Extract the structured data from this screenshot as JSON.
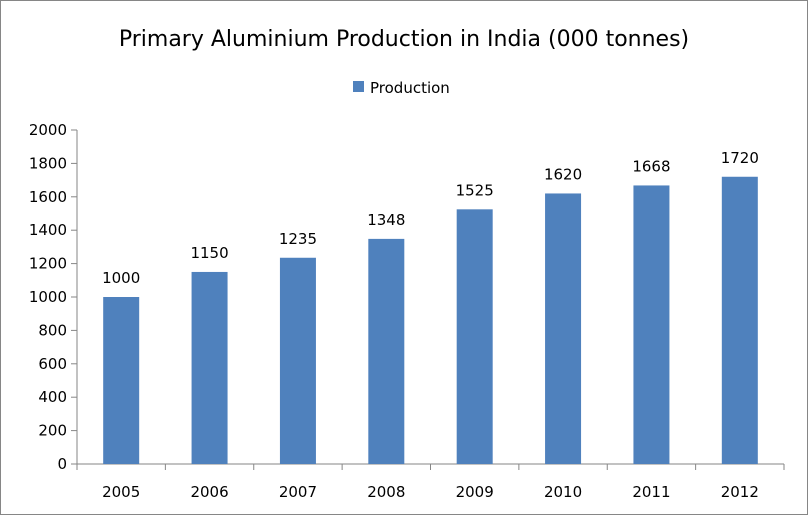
{
  "chart_data": {
    "type": "bar",
    "title": "Primary Aluminium Production in India (000 tonnes)",
    "xlabel": "",
    "ylabel": "",
    "categories": [
      "2005",
      "2006",
      "2007",
      "2008",
      "2009",
      "2010",
      "2011",
      "2012"
    ],
    "series": [
      {
        "name": "Production",
        "values": [
          1000,
          1150,
          1235,
          1348,
          1525,
          1620,
          1668,
          1720
        ],
        "color": "#4F81BD"
      }
    ],
    "ylim": [
      0,
      2000
    ],
    "yticks": [
      "0",
      "200",
      "400",
      "600",
      "800",
      "1000",
      "1200",
      "1400",
      "1600",
      "1800",
      "2000"
    ],
    "data_labels": [
      "1000",
      "1150",
      "1235",
      "1348",
      "1525",
      "1620",
      "1668",
      "1720"
    ],
    "legend": {
      "position": "top",
      "entries": [
        "Production"
      ]
    },
    "grid": false
  }
}
